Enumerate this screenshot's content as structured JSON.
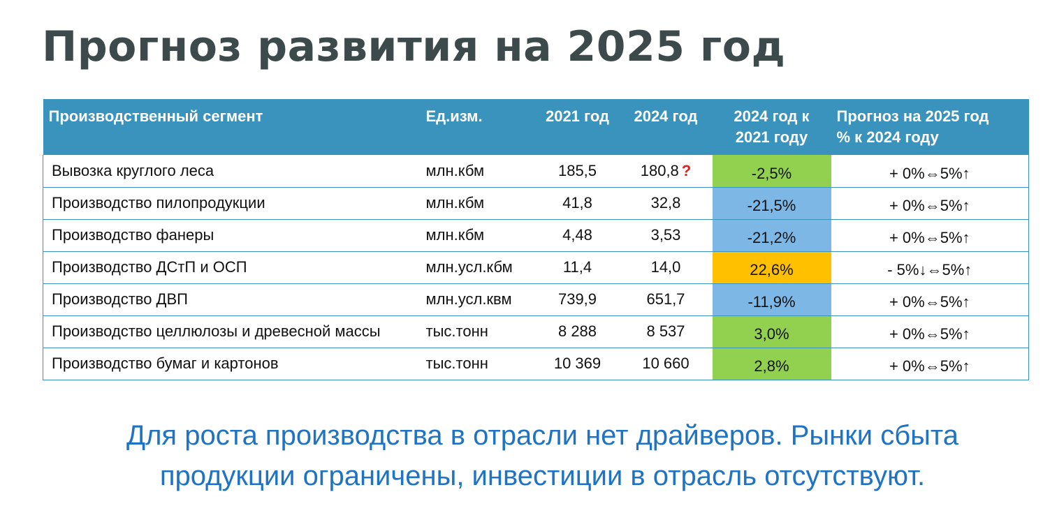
{
  "title": "Прогноз развития на 2025 год",
  "colors": {
    "header_bg": "#3a93bd",
    "title": "#3d4a4c",
    "conclusion": "#1f73c4",
    "green": "#92d050",
    "blue": "#7db7e6",
    "orange": "#ffc000",
    "flag": "#e02020"
  },
  "table": {
    "headers": {
      "segment": "Производственный сегмент",
      "unit": "Ед.изм.",
      "y2021": "2021 год",
      "y2024": "2024 год",
      "change_line1": "2024 год к",
      "change_line2": "2021 году",
      "forecast_line1": "Прогноз на 2025 год",
      "forecast_line2": "% к 2024 году"
    },
    "rows": [
      {
        "segment": "Вывозка круглого леса",
        "unit": "млн.кбм",
        "y2021": "185,5",
        "y2024": "180,8",
        "flag": "?",
        "change": "-2,5%",
        "change_color": "green",
        "forecast": [
          "+ 0%",
          "⇔",
          "5%",
          "🡅"
        ],
        "forecast_parts": {
          "a": "+ 0%",
          "a_arrow": "",
          "mid": "⇔",
          "b": "5%",
          "b_arrow": "↑"
        }
      },
      {
        "segment": "Производство пилопродукции",
        "unit": "млн.кбм",
        "y2021": "41,8",
        "y2024": "32,8",
        "flag": "",
        "change": "-21,5%",
        "change_color": "blue",
        "forecast_parts": {
          "a": "+ 0%",
          "a_arrow": "",
          "mid": "⇔",
          "b": "5%",
          "b_arrow": "↑"
        }
      },
      {
        "segment": "Производство фанеры",
        "unit": "млн.кбм",
        "y2021": "4,48",
        "y2024": "3,53",
        "flag": "",
        "change": "-21,2%",
        "change_color": "blue",
        "forecast_parts": {
          "a": "+ 0%",
          "a_arrow": "",
          "mid": "⇔",
          "b": "5%",
          "b_arrow": "↑"
        }
      },
      {
        "segment": "Производство ДСтП и ОСП",
        "unit": "млн.усл.кбм",
        "y2021": "11,4",
        "y2024": "14,0",
        "flag": "",
        "change": "22,6%",
        "change_color": "orange",
        "forecast_parts": {
          "a": "- 5%",
          "a_arrow": "↓",
          "mid": "⇔",
          "b": "5%",
          "b_arrow": "↑"
        }
      },
      {
        "segment": "Производство ДВП",
        "unit": "млн.усл.квм",
        "y2021": "739,9",
        "y2024": "651,7",
        "flag": "",
        "change": "-11,9%",
        "change_color": "blue",
        "forecast_parts": {
          "a": "+ 0%",
          "a_arrow": "",
          "mid": "⇔",
          "b": "5%",
          "b_arrow": "↑"
        }
      },
      {
        "segment": "Производство целлюлозы и древесной массы",
        "unit": "тыс.тонн",
        "y2021": "8 288",
        "y2024": "8 537",
        "flag": "",
        "change": "3,0%",
        "change_color": "green",
        "forecast_parts": {
          "a": "+ 0%",
          "a_arrow": "",
          "mid": "⇔",
          "b": "5%",
          "b_arrow": "↑"
        }
      },
      {
        "segment": "Производство бумаг и картонов",
        "unit": "тыс.тонн",
        "y2021": "10 369",
        "y2024": "10 660",
        "flag": "",
        "change": "2,8%",
        "change_color": "green",
        "forecast_parts": {
          "a": "+ 0%",
          "a_arrow": "",
          "mid": "⇔",
          "b": "5%",
          "b_arrow": "↑"
        }
      }
    ]
  },
  "conclusion_line1": "Для роста производства в отрасли нет драйверов. Рынки сбыта",
  "conclusion_line2": "продукции ограничены, инвестиции в отрасль отсутствуют."
}
